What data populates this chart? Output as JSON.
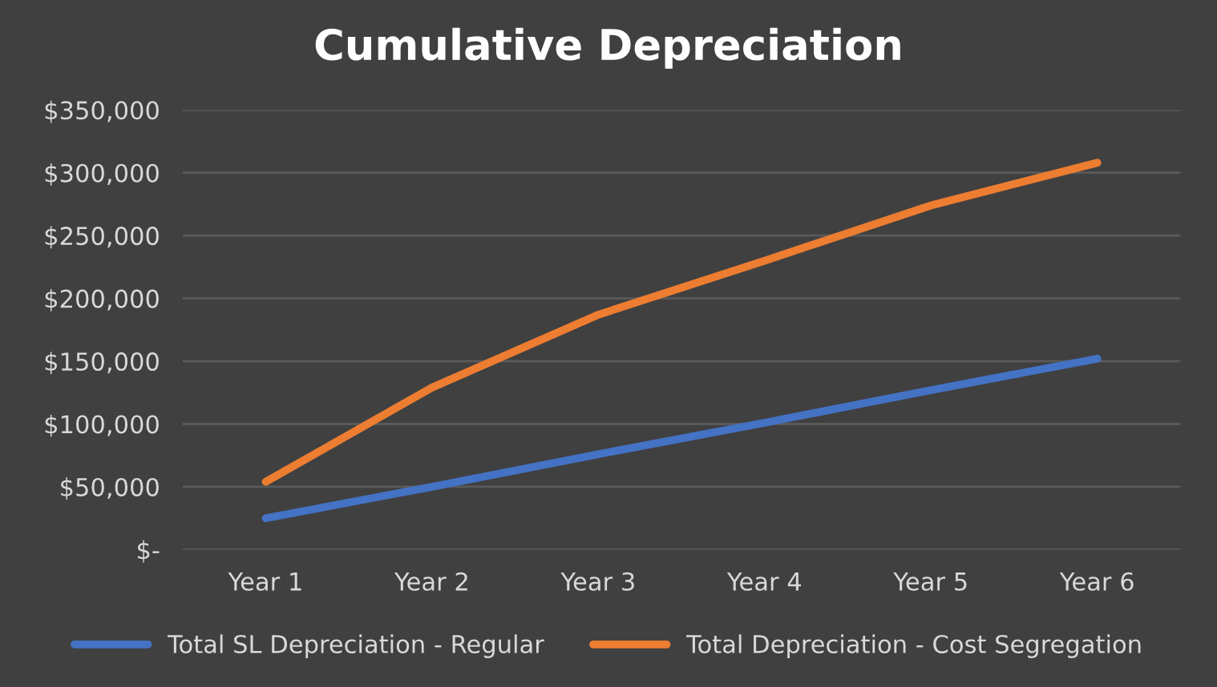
{
  "chart_data": {
    "type": "line",
    "title": "Cumulative Depreciation",
    "categories": [
      "Year 1",
      "Year 2",
      "Year 3",
      "Year 4",
      "Year 5",
      "Year 6"
    ],
    "series": [
      {
        "name": "Total SL Depreciation - Regular",
        "color": "#4472c4",
        "values": [
          25000,
          50000,
          76000,
          101000,
          127000,
          152000
        ]
      },
      {
        "name": "Total Depreciation - Cost Segregation",
        "color": "#ed7d31",
        "values": [
          54000,
          129000,
          187000,
          230000,
          274000,
          308000
        ]
      }
    ],
    "ylim": [
      0,
      350000
    ],
    "yticks": [
      {
        "value": 0,
        "label": "$-"
      },
      {
        "value": 50000,
        "label": "$50,000"
      },
      {
        "value": 100000,
        "label": "$100,000"
      },
      {
        "value": 150000,
        "label": "$150,000"
      },
      {
        "value": 200000,
        "label": "$200,000"
      },
      {
        "value": 250000,
        "label": "$250,000"
      },
      {
        "value": 300000,
        "label": "$300,000"
      },
      {
        "value": 350000,
        "label": "$350,000"
      }
    ],
    "grid": "y",
    "legend": "bottom",
    "marker": "none",
    "line_style": "solid"
  }
}
